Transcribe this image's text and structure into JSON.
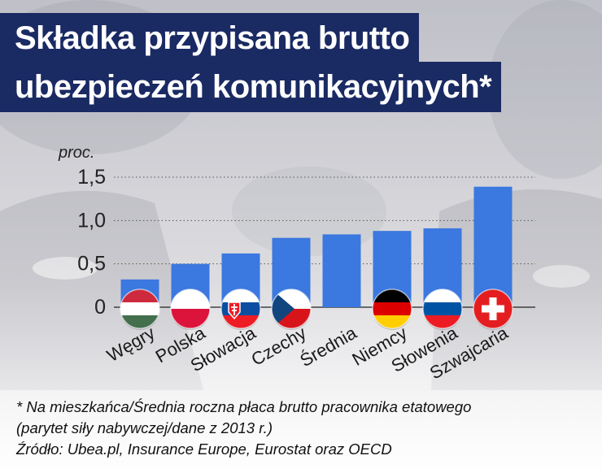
{
  "title": {
    "line1": "Składka przypisana brutto",
    "line2": "ubezpieczeń komunikacyjnych*"
  },
  "colors": {
    "bar": "#3b78df",
    "title_bg": "#1a2a63",
    "title_text": "#ffffff"
  },
  "chart_data": {
    "type": "bar",
    "ylabel": "proc.",
    "ylim": [
      0,
      1.5
    ],
    "yticks": [
      "0",
      "0,5",
      "1,0",
      "1,5"
    ],
    "grid": "dotted horizontal",
    "categories": [
      "Węgry",
      "Polska",
      "Słowacja",
      "Czechy",
      "Średnia",
      "Niemcy",
      "Słowenia",
      "Szwajcaria"
    ],
    "values": [
      0.32,
      0.5,
      0.62,
      0.8,
      0.84,
      0.88,
      0.91,
      1.39
    ],
    "flags": [
      "hungary-flag-icon",
      "poland-flag-icon",
      "slovakia-flag-icon",
      "czech-flag-icon",
      null,
      "germany-flag-icon",
      "slovenia-flag-icon",
      "switzerland-flag-icon"
    ]
  },
  "footnote": {
    "line1": "* Na mieszkańca/Średnia roczna płaca brutto pracownika etatowego",
    "line2": "(parytet siły nabywczej/dane z 2013 r.)",
    "line3": "Źródło: Ubea.pl, Insurance Europe, Eurostat oraz OECD"
  }
}
